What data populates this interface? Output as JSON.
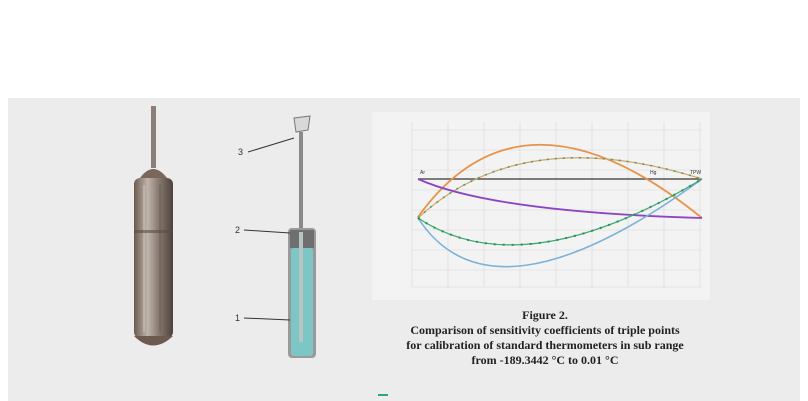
{
  "figure": {
    "title": "Figure 2.",
    "caption_lines": [
      "Comparison of sensitivity coefficients of triple points",
      "for calibration of standard thermometers in sub range",
      "from -189.3442 °C to 0.01 °C"
    ]
  },
  "left_figure": {
    "labels": {
      "top": "3",
      "middle": "2",
      "bottom": "1"
    }
  },
  "chart_data": {
    "type": "line",
    "point_labels": [
      "Ar",
      "Hg",
      "TPW"
    ],
    "colors": {
      "orange": "#e8924a",
      "green_dotted": "#3aa86e",
      "purple": "#8e44c4",
      "blue": "#7ab2dc",
      "grey_axis": "#555555"
    }
  }
}
